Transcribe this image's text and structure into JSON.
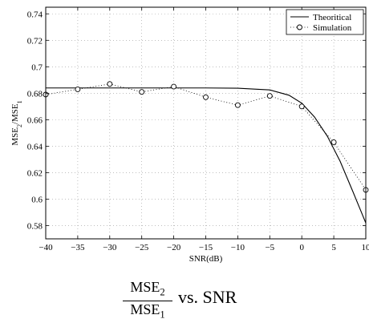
{
  "chart_data": {
    "type": "line",
    "xlabel": "SNR(dB)",
    "ylabel": {
      "base": "MSE",
      "sub1": "2",
      "slash": "/MSE",
      "sub2": "1"
    },
    "xlim": [
      -40,
      10
    ],
    "ylim": [
      0.57,
      0.745
    ],
    "xticks": [
      "-40",
      "-35",
      "-30",
      "-25",
      "-20",
      "-15",
      "-10",
      "-5",
      "0",
      "5",
      "10"
    ],
    "xtick_values": [
      -40,
      -35,
      -30,
      -25,
      -20,
      -15,
      -10,
      -5,
      0,
      5,
      10
    ],
    "yticks": [
      "0.58",
      "0.6",
      "0.62",
      "0.64",
      "0.66",
      "0.68",
      "0.7",
      "0.72",
      "0.74"
    ],
    "ytick_values": [
      0.58,
      0.6,
      0.62,
      0.64,
      0.66,
      0.68,
      0.7,
      0.72,
      0.74
    ],
    "grid": true,
    "legend_position": "top-right",
    "series": [
      {
        "name": "Theoritical",
        "style": "solid",
        "x": [
          -40,
          -35,
          -30,
          -25,
          -20,
          -15,
          -10,
          -5,
          -2,
          0,
          2,
          4,
          6,
          8,
          10
        ],
        "y": [
          0.684,
          0.684,
          0.684,
          0.684,
          0.684,
          0.684,
          0.6838,
          0.6825,
          0.6785,
          0.6725,
          0.662,
          0.6475,
          0.6285,
          0.6055,
          0.582
        ]
      },
      {
        "name": "Simulation",
        "style": "dotted-circles",
        "x": [
          -40,
          -35,
          -30,
          -25,
          -20,
          -15,
          -10,
          -5,
          0,
          5,
          10
        ],
        "y": [
          0.679,
          0.683,
          0.687,
          0.681,
          0.685,
          0.677,
          0.671,
          0.678,
          0.67,
          0.643,
          0.607
        ]
      }
    ]
  },
  "caption": {
    "numerator": "MSE",
    "numerator_sub": "2",
    "denominator": "MSE",
    "denominator_sub": "1",
    "rest": "vs. SNR"
  }
}
